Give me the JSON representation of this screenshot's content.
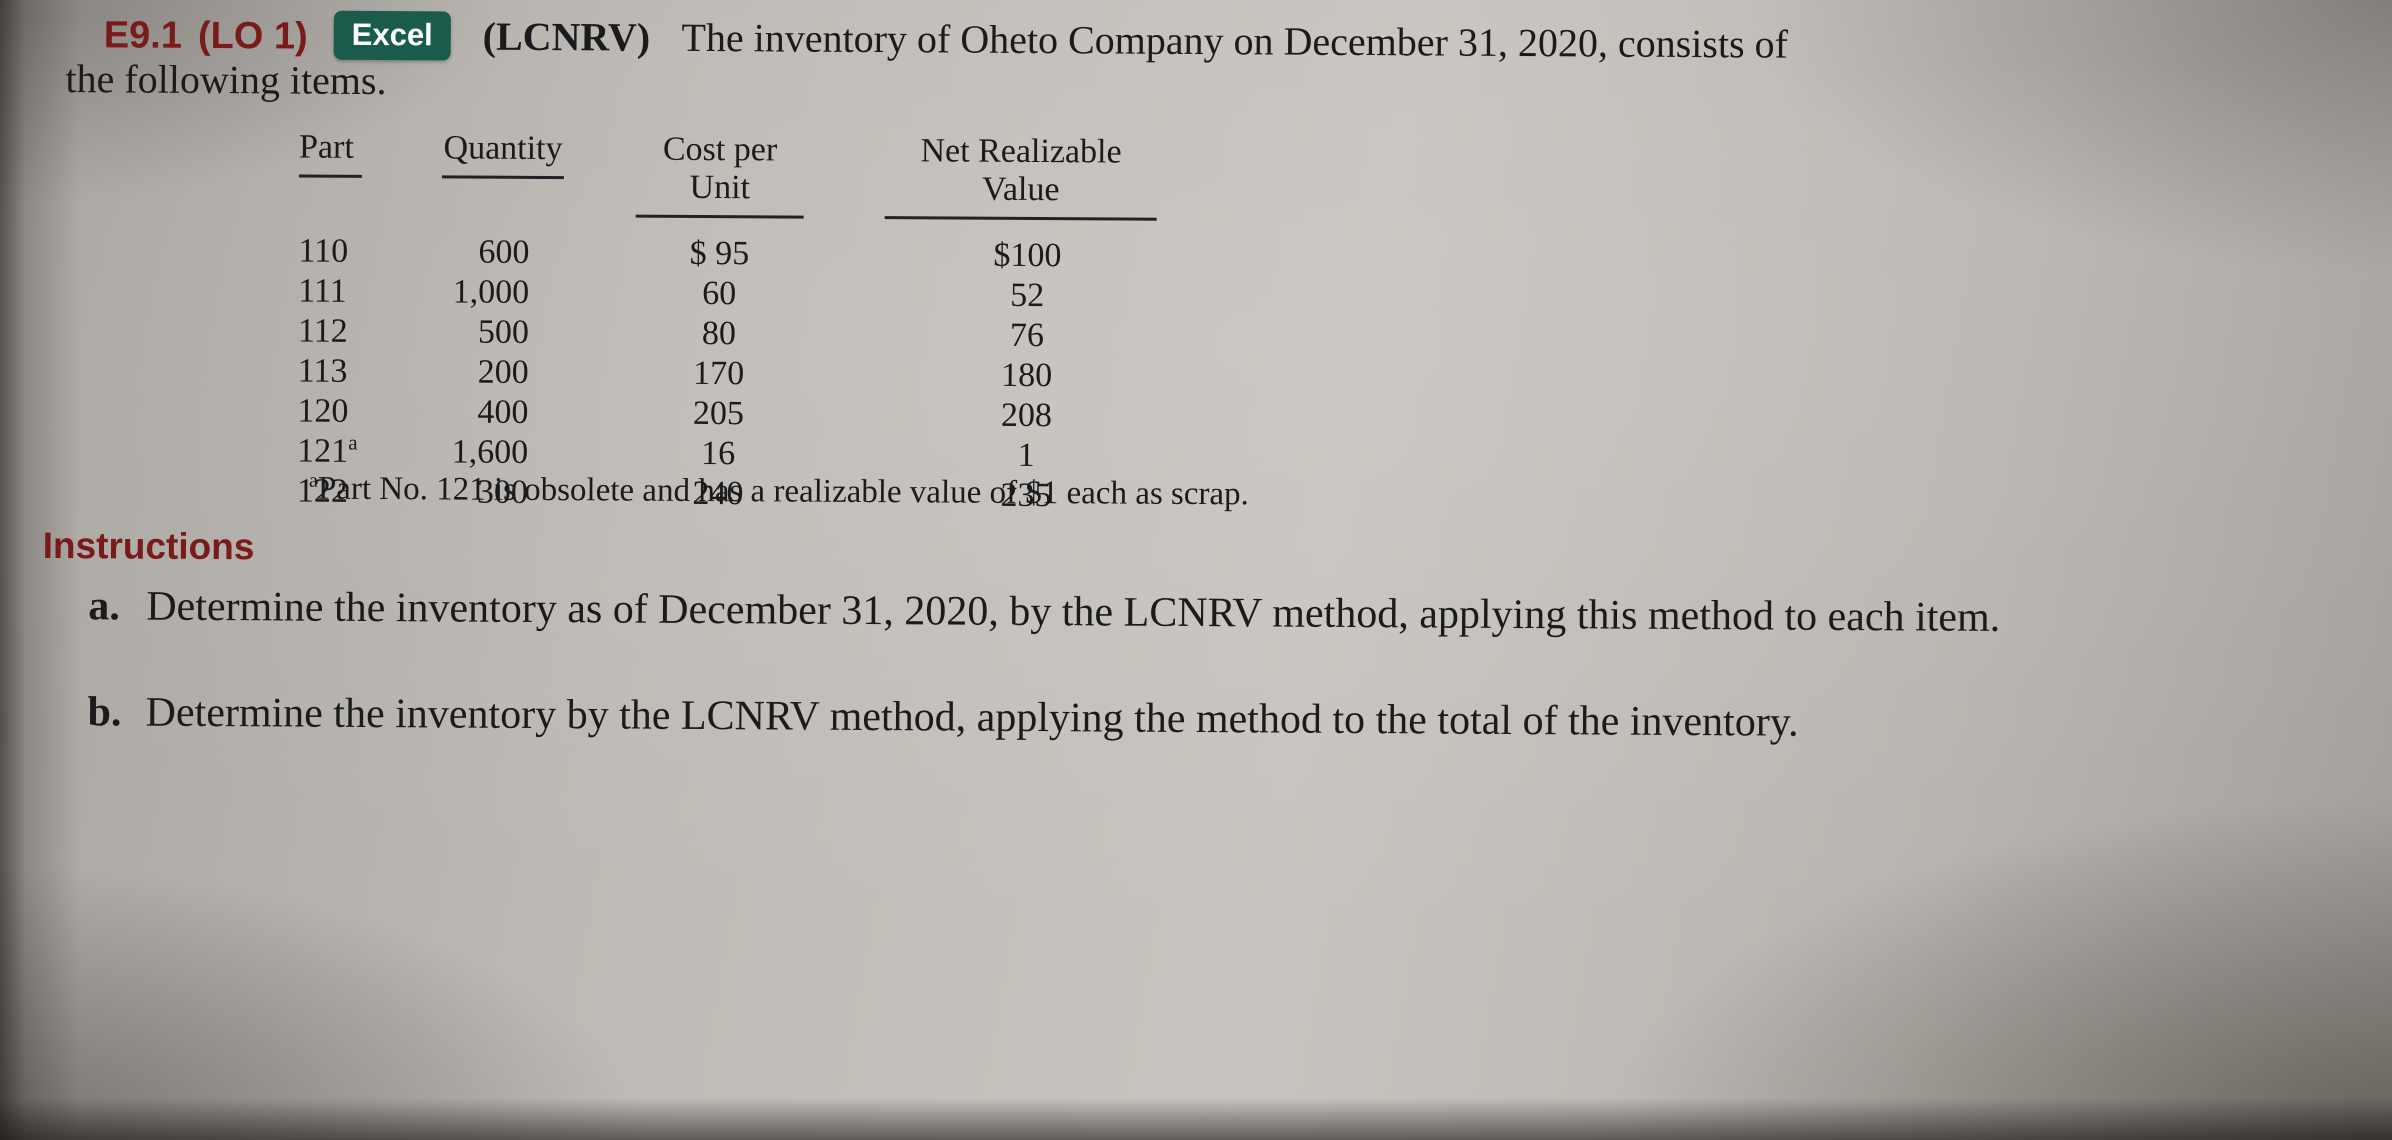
{
  "colors": {
    "accent_red": "#7a1b1b",
    "badge_green": "#1a5c4b",
    "page_background": "#c2beb9",
    "text": "#1b1b1d"
  },
  "problem": {
    "id": "E9.1",
    "lo": "(LO 1)",
    "badge": "Excel",
    "method": "(LCNRV)",
    "intro_line1": "The inventory of Oheto Company on December 31, 2020, consists of",
    "intro_line2": "the following items."
  },
  "table": {
    "headers": [
      "Part",
      "Quantity",
      "Cost per Unit",
      "Net Realizable Value"
    ],
    "rows": [
      {
        "part": "110",
        "sup": "",
        "quantity": "600",
        "cost": "$ 95",
        "nrv": "$100"
      },
      {
        "part": "111",
        "sup": "",
        "quantity": "1,000",
        "cost": "60",
        "nrv": "52"
      },
      {
        "part": "112",
        "sup": "",
        "quantity": "500",
        "cost": "80",
        "nrv": "76"
      },
      {
        "part": "113",
        "sup": "",
        "quantity": "200",
        "cost": "170",
        "nrv": "180"
      },
      {
        "part": "120",
        "sup": "",
        "quantity": "400",
        "cost": "205",
        "nrv": "208"
      },
      {
        "part": "121",
        "sup": "a",
        "quantity": "1,600",
        "cost": "16",
        "nrv": "1"
      },
      {
        "part": "122",
        "sup": "",
        "quantity": "300",
        "cost": "240",
        "nrv": "235"
      }
    ],
    "footnote_sup": "a",
    "footnote_text": "Part No. 121 is obsolete and has a realizable value of $1 each as scrap."
  },
  "instructions": {
    "heading": "Instructions",
    "items": [
      {
        "label": "a.",
        "text": "Determine the inventory as of December 31, 2020, by the LCNRV method, applying this method to each item."
      },
      {
        "label": "b.",
        "text": "Determine the inventory by the LCNRV method, applying the method to the total of the inventory."
      }
    ]
  }
}
